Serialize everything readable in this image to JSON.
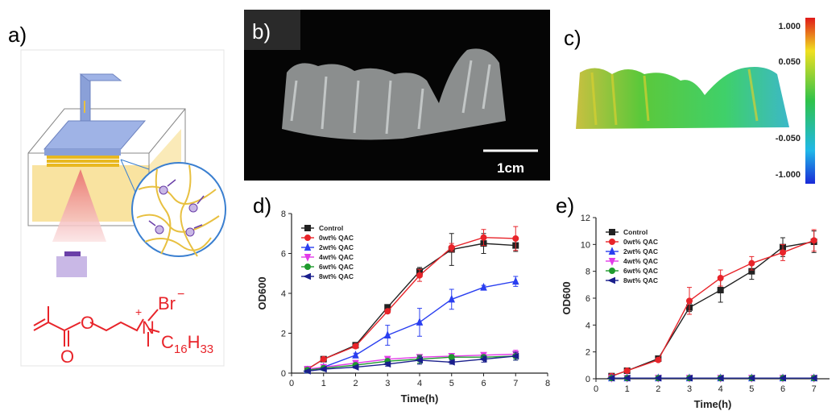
{
  "panels": [
    "a)",
    "b)",
    "c)",
    "d)",
    "e)"
  ],
  "scale_bar": "1cm",
  "colorbar": {
    "labels": [
      "1.000",
      "0.050",
      "-0.050",
      "-1.000"
    ]
  },
  "structure": {
    "atoms": [
      "O",
      "O",
      "N",
      "Br"
    ],
    "charges": [
      "+",
      "−"
    ],
    "substituent": {
      "c": "C",
      "n1": "16",
      "h": "H",
      "n2": "33"
    }
  },
  "chart_data": [
    {
      "type": "line",
      "xlabel": "Time(h)",
      "ylabel": "OD600",
      "legend": "upper left",
      "grid": false,
      "xlim": [
        0,
        8
      ],
      "xticks": [
        0,
        1,
        2,
        3,
        4,
        5,
        6,
        7,
        8
      ],
      "ylim": [
        0,
        8
      ],
      "yticks": [
        0,
        2,
        4,
        6,
        8
      ],
      "x": [
        0.5,
        1,
        2,
        3,
        4,
        5,
        6,
        7
      ],
      "series": [
        {
          "name": "Control",
          "color": "#222222",
          "marker": "square",
          "values": [
            0.2,
            0.7,
            1.4,
            3.3,
            5.1,
            6.2,
            6.5,
            6.4
          ],
          "errors": [
            0.05,
            0.05,
            0.1,
            0.1,
            0.2,
            0.8,
            0.5,
            0.3
          ]
        },
        {
          "name": "0wt% QAC",
          "color": "#e8242a",
          "marker": "circle",
          "values": [
            0.2,
            0.7,
            1.35,
            3.1,
            4.9,
            6.3,
            6.8,
            6.75
          ],
          "errors": [
            0.05,
            0.05,
            0.1,
            0.1,
            0.3,
            0.2,
            0.4,
            0.6
          ]
        },
        {
          "name": "2wt% QAC",
          "color": "#2a3ff0",
          "marker": "triangle",
          "values": [
            0.15,
            0.3,
            0.9,
            1.9,
            2.55,
            3.7,
            4.3,
            4.6
          ],
          "errors": [
            0.05,
            0.05,
            0.1,
            0.5,
            0.7,
            0.5,
            0.1,
            0.25
          ]
        },
        {
          "name": "4wt% QAC",
          "color": "#e23be8",
          "marker": "triangle-down",
          "values": [
            0.2,
            0.3,
            0.5,
            0.7,
            0.8,
            0.85,
            0.9,
            0.95
          ],
          "errors": [
            0.05,
            0.05,
            0.05,
            0.1,
            0.1,
            0.1,
            0.1,
            0.2
          ]
        },
        {
          "name": "6wt% QAC",
          "color": "#1f9a2e",
          "marker": "circle",
          "values": [
            0.15,
            0.25,
            0.4,
            0.6,
            0.7,
            0.8,
            0.8,
            0.85
          ],
          "errors": [
            0.05,
            0.05,
            0.05,
            0.1,
            0.2,
            0.1,
            0.1,
            0.2
          ]
        },
        {
          "name": "8wt% QAC",
          "color": "#1a1f8c",
          "marker": "triangle-left",
          "values": [
            0.1,
            0.2,
            0.3,
            0.45,
            0.65,
            0.55,
            0.7,
            0.85
          ],
          "errors": [
            0.05,
            0.05,
            0.05,
            0.1,
            0.2,
            0.1,
            0.15,
            0.2
          ]
        }
      ]
    },
    {
      "type": "line",
      "xlabel": "Time(h)",
      "ylabel": "OD600",
      "legend": "upper left",
      "grid": false,
      "xlim": [
        0,
        7.5
      ],
      "xticks": [
        0,
        1,
        2,
        3,
        4,
        5,
        6,
        7
      ],
      "ylim": [
        0,
        12
      ],
      "yticks": [
        0,
        2,
        4,
        6,
        8,
        10,
        12
      ],
      "x": [
        0.5,
        1,
        2,
        3,
        4,
        5,
        6,
        7
      ],
      "series": [
        {
          "name": "Control",
          "color": "#222222",
          "marker": "square",
          "values": [
            0.2,
            0.6,
            1.5,
            5.3,
            6.6,
            8.0,
            9.8,
            10.2
          ],
          "errors": [
            0.05,
            0.05,
            0.1,
            0.3,
            0.9,
            0.6,
            0.7,
            0.8
          ]
        },
        {
          "name": "0wt% QAC",
          "color": "#e8242a",
          "marker": "circle",
          "values": [
            0.2,
            0.6,
            1.4,
            5.8,
            7.5,
            8.6,
            9.4,
            10.3
          ],
          "errors": [
            0.05,
            0.05,
            0.1,
            1.0,
            0.6,
            0.5,
            0.6,
            0.8
          ]
        },
        {
          "name": "2wt% QAC",
          "color": "#2a3ff0",
          "marker": "triangle",
          "values": [
            0.05,
            0.05,
            0.05,
            0.05,
            0.05,
            0.05,
            0.05,
            0.05
          ]
        },
        {
          "name": "4wt% QAC",
          "color": "#e23be8",
          "marker": "triangle-down",
          "values": [
            0.05,
            0.05,
            0.05,
            0.05,
            0.05,
            0.05,
            0.05,
            0.05
          ]
        },
        {
          "name": "6wt% QAC",
          "color": "#1f9a2e",
          "marker": "circle",
          "values": [
            0.05,
            0.05,
            0.05,
            0.05,
            0.05,
            0.05,
            0.05,
            0.05
          ]
        },
        {
          "name": "8wt% QAC",
          "color": "#1a1f8c",
          "marker": "triangle-left",
          "values": [
            0.05,
            0.05,
            0.05,
            0.05,
            0.05,
            0.05,
            0.05,
            0.05
          ]
        }
      ]
    }
  ]
}
